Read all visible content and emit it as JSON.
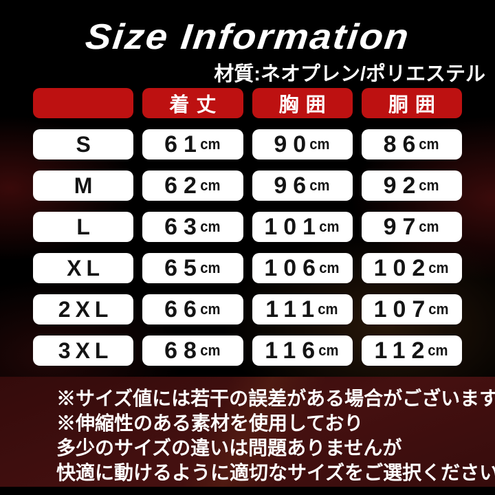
{
  "title": "Size Information",
  "material_label": "材質:ネオプレン/ポリエステル",
  "table": {
    "columns": [
      "着丈",
      "胸囲",
      "胴囲"
    ],
    "unit": "cm",
    "rows": [
      {
        "size": "S",
        "length": "61",
        "chest": "90",
        "waist": "86"
      },
      {
        "size": "M",
        "length": "62",
        "chest": "96",
        "waist": "92"
      },
      {
        "size": "L",
        "length": "63",
        "chest": "101",
        "waist": "97"
      },
      {
        "size": "XL",
        "length": "65",
        "chest": "106",
        "waist": "102"
      },
      {
        "size": "2XL",
        "length": "66",
        "chest": "111",
        "waist": "107"
      },
      {
        "size": "3XL",
        "length": "68",
        "chest": "116",
        "waist": "112"
      }
    ]
  },
  "notes": [
    "※サイズ値には若干の誤差がある場合がございます",
    "※伸縮性のある素材を使用しており",
    "多少のサイズの違いは問題ありませんが",
    "快適に動けるように適切なサイズをご選択ください"
  ],
  "colors": {
    "accent_red": "#bd1111",
    "note_panel_bg": "#3e0e0e",
    "cell_bg": "#ffffff",
    "cell_text": "#141414",
    "text": "#ffffff",
    "background": "#000000"
  }
}
